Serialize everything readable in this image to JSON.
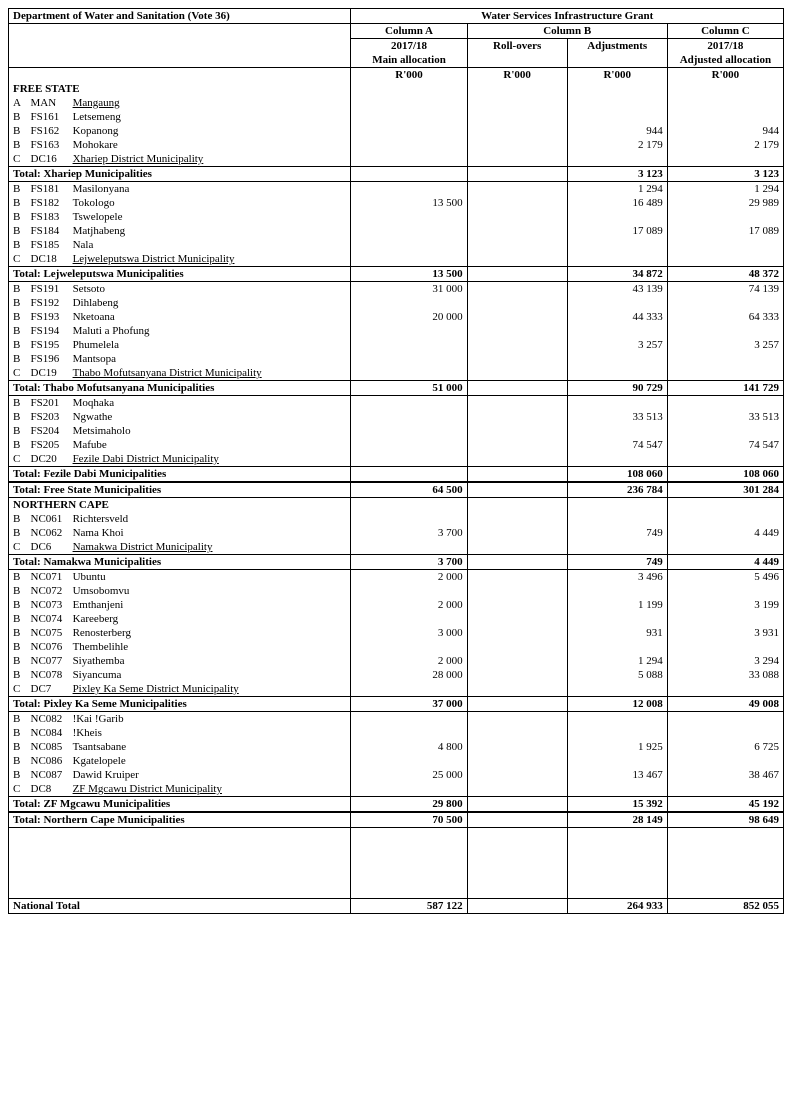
{
  "header": {
    "dept": "Department of Water and Sanitation (Vote 36)",
    "grant": "Water Services Infrastructure Grant",
    "colA": "Column A",
    "colB": "Column B",
    "colC": "Column C",
    "fy": "2017/18",
    "mainAlloc": "Main allocation",
    "roll": "Roll-overs",
    "adj": "Adjustments",
    "adjAlloc": "Adjusted allocation",
    "rk": "R'000"
  },
  "prov1": "FREE STATE",
  "man": {
    "a": "A",
    "b": "MAN",
    "c": "Mangaung"
  },
  "xhariep": [
    {
      "a": "B",
      "b": "FS161",
      "c": "Letsemeng"
    },
    {
      "a": "B",
      "b": "FS162",
      "c": "Kopanong",
      "f": "944",
      "g": "944"
    },
    {
      "a": "B",
      "b": "FS163",
      "c": "Mohokare",
      "f": "2 179",
      "g": "2 179"
    },
    {
      "a": "C",
      "b": "DC16",
      "c": "Xhariep District Municipality"
    }
  ],
  "xhariepTotal": {
    "label": "Total: Xhariep Municipalities",
    "f": "3 123",
    "g": "3 123"
  },
  "lejwe": [
    {
      "a": "B",
      "b": "FS181",
      "c": "Masilonyana",
      "f": "1 294",
      "g": "1 294"
    },
    {
      "a": "B",
      "b": "FS182",
      "c": "Tokologo",
      "d": "13 500",
      "f": "16 489",
      "g": "29 989"
    },
    {
      "a": "B",
      "b": "FS183",
      "c": "Tswelopele"
    },
    {
      "a": "B",
      "b": "FS184",
      "c": "Matjhabeng",
      "f": "17 089",
      "g": "17 089"
    },
    {
      "a": "B",
      "b": "FS185",
      "c": "Nala"
    },
    {
      "a": "C",
      "b": "DC18",
      "c": "Lejweleputswa District Municipality"
    }
  ],
  "lejweTotal": {
    "label": "Total: Lejweleputswa Municipalities",
    "d": "13 500",
    "f": "34 872",
    "g": "48 372"
  },
  "thabo": [
    {
      "a": "B",
      "b": "FS191",
      "c": "Setsoto",
      "d": "31 000",
      "f": "43 139",
      "g": "74 139"
    },
    {
      "a": "B",
      "b": "FS192",
      "c": "Dihlabeng"
    },
    {
      "a": "B",
      "b": "FS193",
      "c": "Nketoana",
      "d": "20 000",
      "f": "44 333",
      "g": "64 333"
    },
    {
      "a": "B",
      "b": "FS194",
      "c": "Maluti a Phofung"
    },
    {
      "a": "B",
      "b": "FS195",
      "c": "Phumelela",
      "f": "3 257",
      "g": "3 257"
    },
    {
      "a": "B",
      "b": "FS196",
      "c": "Mantsopa"
    },
    {
      "a": "C",
      "b": "DC19",
      "c": "Thabo Mofutsanyana District Municipality"
    }
  ],
  "thaboTotal": {
    "label": "Total: Thabo Mofutsanyana Municipalities",
    "d": "51 000",
    "f": "90 729",
    "g": "141 729"
  },
  "fezile": [
    {
      "a": "B",
      "b": "FS201",
      "c": "Moqhaka"
    },
    {
      "a": "B",
      "b": "FS203",
      "c": "Ngwathe",
      "f": "33 513",
      "g": "33 513"
    },
    {
      "a": "B",
      "b": "FS204",
      "c": "Metsimaholo"
    },
    {
      "a": "B",
      "b": "FS205",
      "c": "Mafube",
      "f": "74 547",
      "g": "74 547"
    },
    {
      "a": "C",
      "b": "DC20",
      "c": "Fezile Dabi District Municipality"
    }
  ],
  "fezileTotal": {
    "label": "Total: Fezile Dabi Municipalities",
    "f": "108 060",
    "g": "108 060"
  },
  "fsTotal": {
    "label": "Total: Free State Municipalities",
    "d": "64 500",
    "f": "236 784",
    "g": "301 284"
  },
  "prov2": "NORTHERN CAPE",
  "namakwa": [
    {
      "a": "B",
      "b": "NC061",
      "c": "Richtersveld"
    },
    {
      "a": "B",
      "b": "NC062",
      "c": "Nama Khoi",
      "d": "3 700",
      "f": "749",
      "g": "4 449"
    },
    {
      "a": "C",
      "b": "DC6",
      "c": "Namakwa District Municipality"
    }
  ],
  "namakwaTotal": {
    "label": "Total: Namakwa Municipalities",
    "d": "3 700",
    "f": "749",
    "g": "4 449"
  },
  "pixley": [
    {
      "a": "B",
      "b": "NC071",
      "c": "Ubuntu",
      "d": "2 000",
      "f": "3 496",
      "g": "5 496"
    },
    {
      "a": "B",
      "b": "NC072",
      "c": "Umsobomvu"
    },
    {
      "a": "B",
      "b": "NC073",
      "c": "Emthanjeni",
      "d": "2 000",
      "f": "1 199",
      "g": "3 199"
    },
    {
      "a": "B",
      "b": "NC074",
      "c": "Kareeberg"
    },
    {
      "a": "B",
      "b": "NC075",
      "c": "Renosterberg",
      "d": "3 000",
      "f": "931",
      "g": "3 931"
    },
    {
      "a": "B",
      "b": "NC076",
      "c": "Thembelihle"
    },
    {
      "a": "B",
      "b": "NC077",
      "c": "Siyathemba",
      "d": "2 000",
      "f": "1 294",
      "g": "3 294"
    },
    {
      "a": "B",
      "b": "NC078",
      "c": "Siyancuma",
      "d": "28 000",
      "f": "5 088",
      "g": "33 088"
    },
    {
      "a": "C",
      "b": "DC7",
      "c": "Pixley Ka Seme District Municipality"
    }
  ],
  "pixleyTotal": {
    "label": "Total: Pixley Ka Seme Municipalities",
    "d": "37 000",
    "f": "12 008",
    "g": "49 008"
  },
  "zf": [
    {
      "a": "B",
      "b": "NC082",
      "c": "!Kai !Garib"
    },
    {
      "a": "B",
      "b": "NC084",
      "c": "!Kheis"
    },
    {
      "a": "B",
      "b": "NC085",
      "c": "Tsantsabane",
      "d": "4 800",
      "f": "1 925",
      "g": "6 725"
    },
    {
      "a": "B",
      "b": "NC086",
      "c": "Kgatelopele"
    },
    {
      "a": "B",
      "b": "NC087",
      "c": "Dawid Kruiper",
      "d": "25 000",
      "f": "13 467",
      "g": "38 467"
    },
    {
      "a": "C",
      "b": "DC8",
      "c": "ZF Mgcawu District Municipality"
    }
  ],
  "zfTotal": {
    "label": "Total: ZF Mgcawu Municipalities",
    "d": "29 800",
    "f": "15 392",
    "g": "45 192"
  },
  "ncTotal": {
    "label": "Total: Northern Cape Municipalities",
    "d": "70 500",
    "f": "28 149",
    "g": "98 649"
  },
  "natTotal": {
    "label": "National Total",
    "d": "587 122",
    "f": "264 933",
    "g": "852 055"
  }
}
